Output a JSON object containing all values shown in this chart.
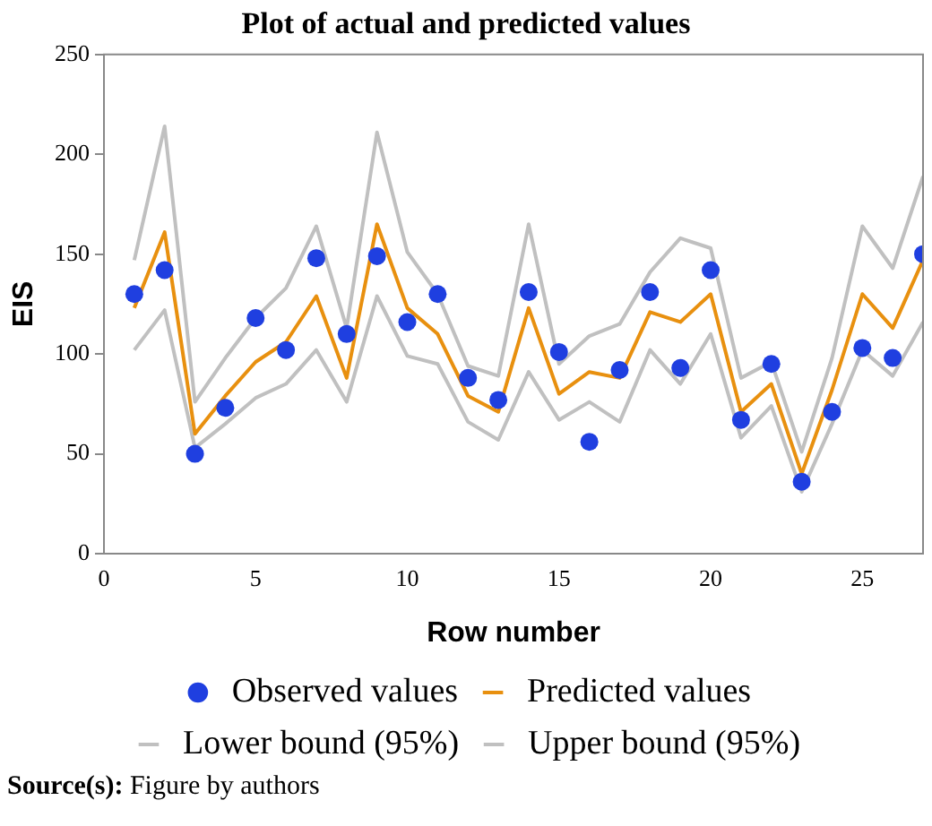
{
  "chart_data": {
    "type": "line",
    "title": "Plot of actual and predicted values",
    "xlabel": "Row number",
    "ylabel": "EIS",
    "x": [
      1,
      2,
      3,
      4,
      5,
      6,
      7,
      8,
      9,
      10,
      11,
      12,
      13,
      14,
      15,
      16,
      17,
      18,
      19,
      20,
      21,
      22,
      23,
      24,
      25,
      26,
      27
    ],
    "series": [
      {
        "name": "Observed values",
        "type": "scatter",
        "color": "#1f3fe0",
        "marker": "circle",
        "line_style": "none",
        "values": [
          130,
          142,
          50,
          73,
          118,
          102,
          148,
          110,
          149,
          116,
          130,
          88,
          77,
          131,
          101,
          56,
          92,
          131,
          93,
          142,
          67,
          95,
          36,
          71,
          103,
          98,
          150
        ]
      },
      {
        "name": "Predicted values",
        "type": "line",
        "color": "#e8900f",
        "values": [
          123,
          161,
          60,
          79,
          96,
          106,
          129,
          88,
          165,
          123,
          110,
          79,
          71,
          123,
          80,
          91,
          88,
          121,
          116,
          130,
          71,
          85,
          40,
          82,
          130,
          113,
          147
        ]
      },
      {
        "name": "Lower bound (95%)",
        "type": "line",
        "color": "#c0c0c0",
        "values": [
          102,
          122,
          53,
          65,
          78,
          85,
          102,
          76,
          129,
          99,
          95,
          66,
          57,
          91,
          67,
          76,
          66,
          102,
          85,
          110,
          58,
          74,
          31,
          65,
          102,
          89,
          116
        ]
      },
      {
        "name": "Upper bound (95%)",
        "type": "line",
        "color": "#c0c0c0",
        "values": [
          147,
          214,
          76,
          98,
          118,
          133,
          164,
          113,
          211,
          151,
          130,
          94,
          89,
          165,
          95,
          109,
          115,
          141,
          158,
          153,
          88,
          96,
          51,
          98,
          164,
          143,
          189
        ]
      }
    ],
    "xlim": [
      0,
      27
    ],
    "xticks": [
      0,
      5,
      10,
      15,
      20,
      25
    ],
    "ylim": [
      0,
      250
    ],
    "yticks": [
      0,
      50,
      100,
      150,
      200,
      250
    ],
    "grid": false,
    "legend": "bottom",
    "marker": "none",
    "line_style": "solid",
    "annotations": [
      "Source(s): Figure by authors"
    ]
  }
}
